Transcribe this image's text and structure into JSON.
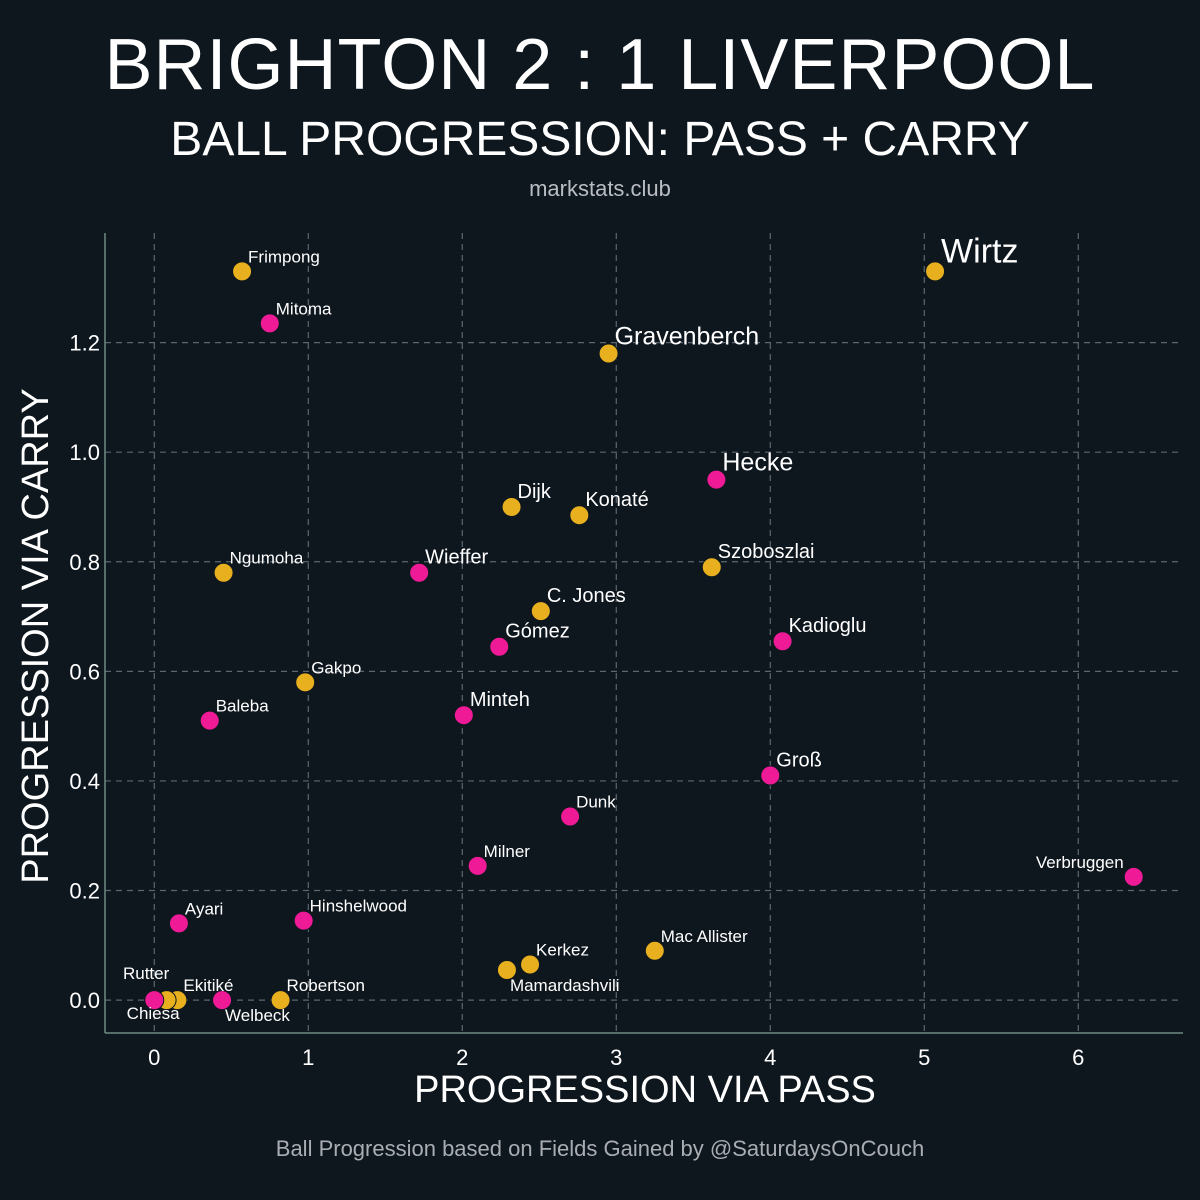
{
  "header": {
    "title": "BRIGHTON 2 : 1 LIVERPOOL",
    "subtitle": "BALL PROGRESSION: PASS + CARRY",
    "site": "markstats.club"
  },
  "footer": {
    "credit": "Ball Progression based on Fields Gained by @SaturdaysOnCouch"
  },
  "colors": {
    "background": "#0e161e",
    "liverpool": "#e8b01f",
    "brighton": "#ee1a96",
    "grid": "#5b6770",
    "axis": "#6f8a82",
    "text": "#ffffff"
  },
  "chart_data": {
    "type": "scatter",
    "xlabel": "PROGRESSION VIA PASS",
    "ylabel": "PROGRESSION VIA CARRY",
    "xlim": [
      -0.32,
      6.68
    ],
    "ylim": [
      -0.06,
      1.4
    ],
    "xticks": [
      0,
      1,
      2,
      3,
      4,
      5,
      6
    ],
    "xtick_labels": [
      "0",
      "1",
      "2",
      "3",
      "4",
      "5",
      "6"
    ],
    "yticks": [
      0.0,
      0.2,
      0.4,
      0.6,
      0.8,
      1.0,
      1.2
    ],
    "ytick_labels": [
      "0.0",
      "0.2",
      "0.4",
      "0.6",
      "0.8",
      "1.0",
      "1.2"
    ],
    "grid": true,
    "series": [
      {
        "name": "Liverpool",
        "color": "#e8b01f",
        "points": [
          {
            "label": "Wirtz",
            "x": 5.07,
            "y": 1.33,
            "size": "xl",
            "anchor": "above-right"
          },
          {
            "label": "Gravenberch",
            "x": 2.95,
            "y": 1.18,
            "size": "l",
            "anchor": "above-right"
          },
          {
            "label": "Frimpong",
            "x": 0.57,
            "y": 1.33,
            "size": "s",
            "anchor": "above-right"
          },
          {
            "label": "Dijk",
            "x": 2.32,
            "y": 0.9,
            "size": "m",
            "anchor": "above-right"
          },
          {
            "label": "Konaté",
            "x": 2.76,
            "y": 0.885,
            "size": "m",
            "anchor": "above-right"
          },
          {
            "label": "Szoboszlai",
            "x": 3.62,
            "y": 0.79,
            "size": "m",
            "anchor": "above-right"
          },
          {
            "label": "Ngumoha",
            "x": 0.45,
            "y": 0.78,
            "size": "s",
            "anchor": "above-right"
          },
          {
            "label": "C. Jones",
            "x": 2.51,
            "y": 0.71,
            "size": "m",
            "anchor": "above-right"
          },
          {
            "label": "Gakpo",
            "x": 0.98,
            "y": 0.58,
            "size": "s",
            "anchor": "above-right"
          },
          {
            "label": "Mac Allister",
            "x": 3.25,
            "y": 0.09,
            "size": "s",
            "anchor": "above-right"
          },
          {
            "label": "Kerkez",
            "x": 2.44,
            "y": 0.065,
            "size": "s",
            "anchor": "above-right"
          },
          {
            "label": "Mamardashvili",
            "x": 2.29,
            "y": 0.055,
            "size": "s",
            "anchor": "below-right"
          },
          {
            "label": "Ekitiké",
            "x": 0.15,
            "y": 0.0,
            "size": "s",
            "anchor": "above-right"
          },
          {
            "label": "Robertson",
            "x": 0.82,
            "y": 0.0,
            "size": "s",
            "anchor": "above-right"
          },
          {
            "label": "Chiesa",
            "x": 0.08,
            "y": 0.0,
            "size": "s",
            "anchor": "below-left"
          }
        ]
      },
      {
        "name": "Brighton",
        "color": "#ee1a96",
        "points": [
          {
            "label": "Mitoma",
            "x": 0.75,
            "y": 1.235,
            "size": "s",
            "anchor": "above-right"
          },
          {
            "label": "Hecke",
            "x": 3.65,
            "y": 0.95,
            "size": "l",
            "anchor": "above-right"
          },
          {
            "label": "Wieffer",
            "x": 1.72,
            "y": 0.78,
            "size": "m",
            "anchor": "above-right"
          },
          {
            "label": "Kadioglu",
            "x": 4.08,
            "y": 0.655,
            "size": "m",
            "anchor": "above-right"
          },
          {
            "label": "Gómez",
            "x": 2.24,
            "y": 0.645,
            "size": "m",
            "anchor": "above-right"
          },
          {
            "label": "Baleba",
            "x": 0.36,
            "y": 0.51,
            "size": "s",
            "anchor": "above-right"
          },
          {
            "label": "Minteh",
            "x": 2.01,
            "y": 0.52,
            "size": "m",
            "anchor": "above-right"
          },
          {
            "label": "Groß",
            "x": 4.0,
            "y": 0.41,
            "size": "m",
            "anchor": "above-right"
          },
          {
            "label": "Dunk",
            "x": 2.7,
            "y": 0.335,
            "size": "s",
            "anchor": "above-right"
          },
          {
            "label": "Milner",
            "x": 2.1,
            "y": 0.245,
            "size": "s",
            "anchor": "above-right"
          },
          {
            "label": "Verbruggen",
            "x": 6.36,
            "y": 0.225,
            "size": "s",
            "anchor": "above-left"
          },
          {
            "label": "Ayari",
            "x": 0.16,
            "y": 0.14,
            "size": "s",
            "anchor": "above-right"
          },
          {
            "label": "Hinshelwood",
            "x": 0.97,
            "y": 0.145,
            "size": "s",
            "anchor": "above-right"
          },
          {
            "label": "Welbeck",
            "x": 0.44,
            "y": 0.0,
            "size": "s",
            "anchor": "below-right"
          },
          {
            "label": "Rutter",
            "x": 0.0,
            "y": 0.0,
            "size": "s",
            "anchor": "above-left"
          }
        ]
      }
    ]
  }
}
